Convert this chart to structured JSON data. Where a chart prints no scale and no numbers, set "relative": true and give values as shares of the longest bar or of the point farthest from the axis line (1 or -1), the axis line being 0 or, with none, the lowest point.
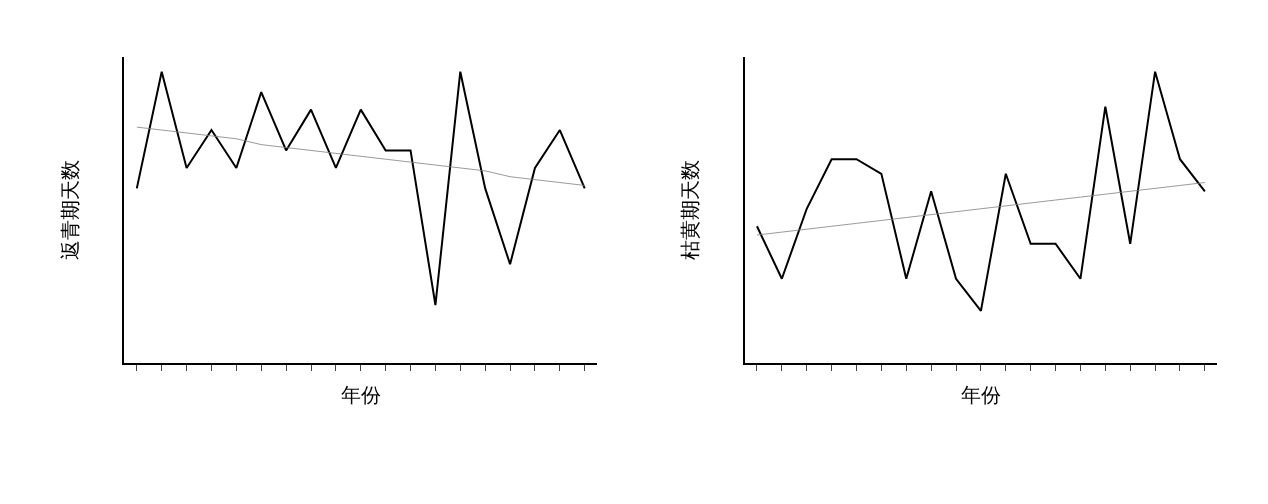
{
  "chart_data": [
    {
      "type": "line",
      "ylabel": "返青期天数",
      "xlabel": "年份",
      "relative": true,
      "marker": "none",
      "line_style": "solid",
      "categories": [
        null,
        null,
        null,
        null,
        null,
        null,
        null,
        null,
        null,
        null,
        null,
        null,
        null,
        null,
        null,
        null,
        null,
        null,
        null
      ],
      "series": [
        {
          "color": "#000000",
          "values": [
            0.6,
            1,
            0.67,
            0.8,
            0.67,
            0.93,
            0.73,
            0.87,
            0.67,
            0.87,
            0.73,
            0.73,
            0.2,
            1,
            0.6,
            0.34,
            0.67,
            0.8,
            0.6
          ]
        },
        {
          "type": "line",
          "color": "#808080",
          "values": [
            0.81,
            0.8,
            0.79,
            0.78,
            0.77,
            0.75,
            0.74,
            0.73,
            0.72,
            0.71,
            0.7,
            0.69,
            0.68,
            0.67,
            0.66,
            0.64,
            0.63,
            0.62,
            0.61
          ]
        }
      ]
    },
    {
      "type": "line",
      "ylabel": "枯黄期天数",
      "xlabel": "年份",
      "relative": true,
      "marker": "none",
      "line_style": "solid",
      "categories": [
        null,
        null,
        null,
        null,
        null,
        null,
        null,
        null,
        null,
        null,
        null,
        null,
        null,
        null,
        null,
        null,
        null,
        null,
        null
      ],
      "series": [
        {
          "color": "#000000",
          "values": [
            0.47,
            0.29,
            0.53,
            0.7,
            0.7,
            0.65,
            0.29,
            0.59,
            0.29,
            0.18,
            0.65,
            0.41,
            0.41,
            0.29,
            0.88,
            0.41,
            1,
            0.7,
            0.59
          ]
        },
        {
          "type": "line",
          "color": "#808080",
          "values": [
            0.44,
            0.45,
            0.46,
            0.47,
            0.48,
            0.49,
            0.5,
            0.51,
            0.52,
            0.53,
            0.54,
            0.55,
            0.56,
            0.57,
            0.58,
            0.59,
            0.6,
            0.61,
            0.62
          ]
        }
      ]
    }
  ]
}
